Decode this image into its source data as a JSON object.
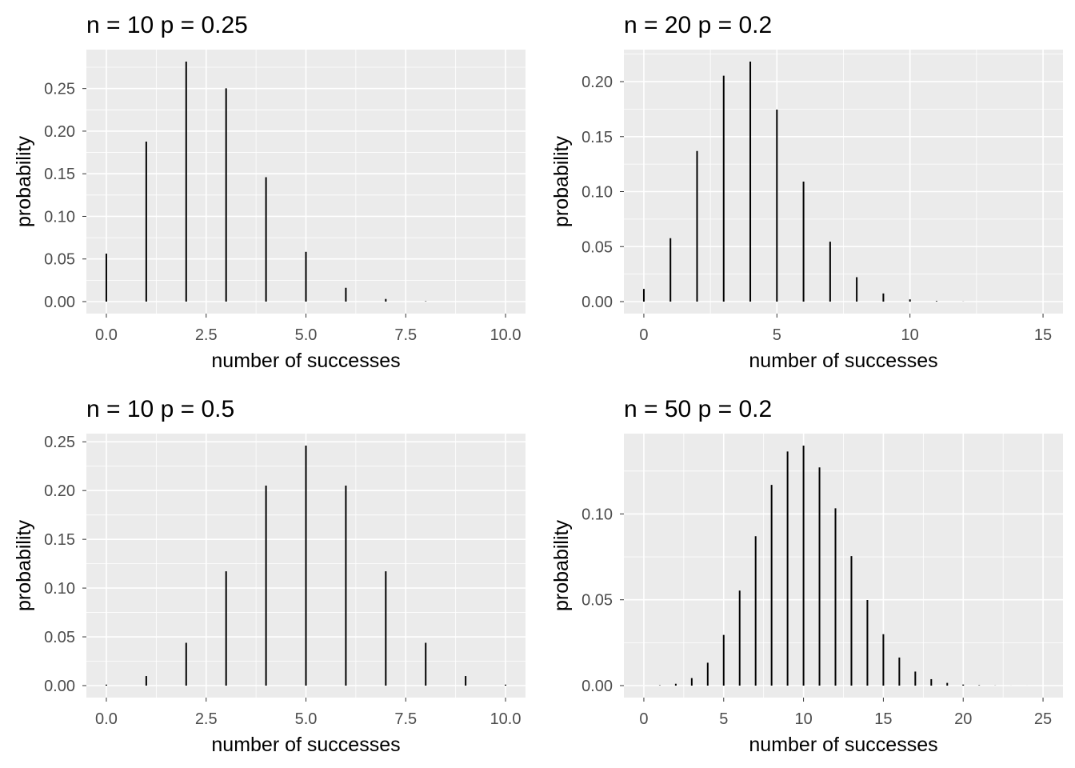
{
  "chart_data": [
    {
      "type": "bar",
      "title": "n =  10  p =  0.25",
      "xlabel": "number of successes",
      "ylabel": "probability",
      "x": [
        0,
        1,
        2,
        3,
        4,
        5,
        6,
        7,
        8,
        9,
        10
      ],
      "values": [
        0.0563,
        0.1877,
        0.2816,
        0.2503,
        0.146,
        0.0584,
        0.0162,
        0.0031,
        0.0004,
        0.0,
        0.0
      ],
      "xticks": [
        0,
        2.5,
        5,
        7.5,
        10
      ],
      "xtick_labels": [
        "0.0",
        "2.5",
        "5.0",
        "7.5",
        "10.0"
      ],
      "yticks": [
        0,
        0.05,
        0.1,
        0.15,
        0.2,
        0.25
      ],
      "ytick_labels": [
        "0.00",
        "0.05",
        "0.10",
        "0.15",
        "0.20",
        "0.25"
      ],
      "grid": true
    },
    {
      "type": "bar",
      "title": "n =  20  p =  0.2",
      "xlabel": "number of successes",
      "ylabel": "probability",
      "x": [
        0,
        1,
        2,
        3,
        4,
        5,
        6,
        7,
        8,
        9,
        10,
        11,
        12,
        13,
        14,
        15
      ],
      "values": [
        0.0115,
        0.0576,
        0.1369,
        0.2054,
        0.2182,
        0.1746,
        0.1091,
        0.0545,
        0.0222,
        0.0074,
        0.002,
        0.0005,
        0.0001,
        0.0,
        0.0,
        0.0
      ],
      "xticks": [
        0,
        5,
        10,
        15
      ],
      "xtick_labels": [
        "0",
        "5",
        "10",
        "15"
      ],
      "yticks": [
        0,
        0.05,
        0.1,
        0.15,
        0.2
      ],
      "ytick_labels": [
        "0.00",
        "0.05",
        "0.10",
        "0.15",
        "0.20"
      ],
      "grid": true
    },
    {
      "type": "bar",
      "title": "n =  10  p =  0.5",
      "xlabel": "number of successes",
      "ylabel": "probability",
      "x": [
        0,
        1,
        2,
        3,
        4,
        5,
        6,
        7,
        8,
        9,
        10
      ],
      "values": [
        0.001,
        0.0098,
        0.0439,
        0.1172,
        0.2051,
        0.2461,
        0.2051,
        0.1172,
        0.0439,
        0.0098,
        0.001
      ],
      "xticks": [
        0,
        2.5,
        5,
        7.5,
        10
      ],
      "xtick_labels": [
        "0.0",
        "2.5",
        "5.0",
        "7.5",
        "10.0"
      ],
      "yticks": [
        0,
        0.05,
        0.1,
        0.15,
        0.2,
        0.25
      ],
      "ytick_labels": [
        "0.00",
        "0.05",
        "0.10",
        "0.15",
        "0.20",
        "0.25"
      ],
      "grid": true
    },
    {
      "type": "bar",
      "title": "n =  50  p =  0.2",
      "xlabel": "number of successes",
      "ylabel": "probability",
      "x": [
        0,
        1,
        2,
        3,
        4,
        5,
        6,
        7,
        8,
        9,
        10,
        11,
        12,
        13,
        14,
        15,
        16,
        17,
        18,
        19,
        20,
        21,
        22,
        23,
        24,
        25
      ],
      "values": [
        1e-05,
        0.00018,
        0.00107,
        0.00437,
        0.01333,
        0.02953,
        0.05537,
        0.08701,
        0.11692,
        0.13641,
        0.13982,
        0.12711,
        0.10328,
        0.07547,
        0.04986,
        0.02992,
        0.01636,
        0.00818,
        0.00375,
        0.00158,
        0.00061,
        0.00022,
        7e-05,
        2e-05,
        1e-05,
        0.0
      ],
      "xticks": [
        0,
        5,
        10,
        15,
        20,
        25
      ],
      "xtick_labels": [
        "0",
        "5",
        "10",
        "15",
        "20",
        "25"
      ],
      "yticks": [
        0,
        0.05,
        0.1
      ],
      "ytick_labels": [
        "0.00",
        "0.05",
        "0.10"
      ],
      "grid": true
    }
  ]
}
